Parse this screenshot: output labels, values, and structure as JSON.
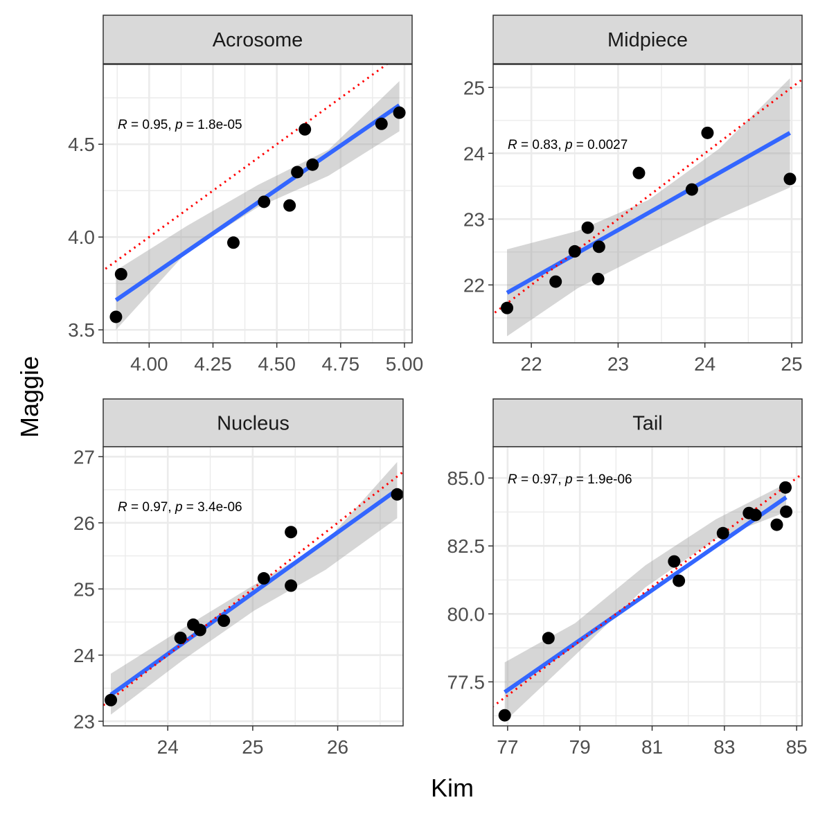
{
  "figure": {
    "xlabel": "Kim",
    "ylabel": "Maggie"
  },
  "colors": {
    "fit_line": "#3366FF",
    "ci_band": "#999999",
    "identity_line": "#FF0000",
    "points": "#000000",
    "strip_fill": "#D9D9D9",
    "grid": "#EBEBEB"
  },
  "chart_data": [
    {
      "type": "scatter",
      "facet": "Acrosome",
      "stat_label": {
        "r": "0.95",
        "p": "1.8e-05"
      },
      "xlim": [
        3.82,
        5.03
      ],
      "ylim": [
        3.43,
        4.93
      ],
      "xticks": [
        4.0,
        4.25,
        4.5,
        4.75,
        5.0
      ],
      "xtick_labels": [
        "4.00",
        "4.25",
        "4.50",
        "4.75",
        "5.00"
      ],
      "yticks": [
        3.5,
        4.0,
        4.5
      ],
      "ytick_labels": [
        "3.5",
        "4.0",
        "4.5"
      ],
      "points": [
        [
          3.87,
          3.57
        ],
        [
          3.89,
          3.8
        ],
        [
          4.33,
          3.97
        ],
        [
          4.45,
          4.19
        ],
        [
          4.55,
          4.17
        ],
        [
          4.58,
          4.35
        ],
        [
          4.61,
          4.58
        ],
        [
          4.64,
          4.39
        ],
        [
          4.91,
          4.61
        ],
        [
          4.98,
          4.67
        ]
      ],
      "fit": {
        "x": [
          3.87,
          4.98
        ],
        "y": [
          3.66,
          4.71
        ]
      },
      "ci_upper": [
        3.82,
        4.06,
        4.28,
        4.47,
        4.84
      ],
      "ci_lower": [
        3.5,
        3.92,
        4.16,
        4.33,
        4.57
      ]
    },
    {
      "type": "scatter",
      "facet": "Midpiece",
      "stat_label": {
        "r": "0.83",
        "p": "0.0027"
      },
      "xlim": [
        21.56,
        25.12
      ],
      "ylim": [
        21.12,
        25.35
      ],
      "xticks": [
        22,
        23,
        24,
        25
      ],
      "xtick_labels": [
        "22",
        "23",
        "24",
        "25"
      ],
      "yticks": [
        22,
        23,
        24,
        25
      ],
      "ytick_labels": [
        "22",
        "23",
        "24",
        "25"
      ],
      "points": [
        [
          21.72,
          21.65
        ],
        [
          22.28,
          22.05
        ],
        [
          22.5,
          22.51
        ],
        [
          22.65,
          22.87
        ],
        [
          22.78,
          22.58
        ],
        [
          22.77,
          22.09
        ],
        [
          23.24,
          23.7
        ],
        [
          23.85,
          23.45
        ],
        [
          24.03,
          24.31
        ],
        [
          24.98,
          23.61
        ]
      ],
      "fit": {
        "x": [
          21.72,
          24.98
        ],
        "y": [
          21.88,
          24.31
        ]
      },
      "ci_upper": [
        22.54,
        22.82,
        23.29,
        24.07,
        25.14
      ],
      "ci_lower": [
        21.22,
        21.95,
        22.5,
        23.01,
        23.48
      ]
    },
    {
      "type": "scatter",
      "facet": "Nucleus",
      "stat_label": {
        "r": "0.97",
        "p": "3.4e-06"
      },
      "xlim": [
        23.24,
        26.77
      ],
      "ylim": [
        22.93,
        27.15
      ],
      "xticks": [
        24,
        25,
        26
      ],
      "xtick_labels": [
        "24",
        "25",
        "26"
      ],
      "yticks": [
        23,
        24,
        25,
        26,
        27
      ],
      "ytick_labels": [
        "23",
        "24",
        "25",
        "26",
        "27"
      ],
      "points": [
        [
          23.33,
          23.32
        ],
        [
          24.15,
          24.26
        ],
        [
          24.3,
          24.46
        ],
        [
          24.38,
          24.38
        ],
        [
          24.66,
          24.52
        ],
        [
          25.13,
          25.16
        ],
        [
          25.45,
          25.86
        ],
        [
          25.45,
          25.05
        ],
        [
          26.7,
          26.43
        ]
      ],
      "fit": {
        "x": [
          23.33,
          26.7
        ],
        "y": [
          23.4,
          26.5
        ]
      },
      "ci_upper": [
        23.72,
        24.4,
        25.06,
        25.71,
        26.92
      ],
      "ci_lower": [
        23.1,
        23.92,
        24.67,
        25.29,
        26.07
      ]
    },
    {
      "type": "scatter",
      "facet": "Tail",
      "stat_label": {
        "r": "0.97",
        "p": "1.9e-06"
      },
      "xlim": [
        76.6,
        85.15
      ],
      "ylim": [
        75.88,
        86.15
      ],
      "xticks": [
        77,
        79,
        81,
        83,
        85
      ],
      "xtick_labels": [
        "77",
        "79",
        "81",
        "83",
        "85"
      ],
      "yticks": [
        77.5,
        80.0,
        82.5,
        85.0
      ],
      "ytick_labels": [
        "77.5",
        "80.0",
        "82.5",
        "85.0"
      ],
      "points": [
        [
          76.92,
          76.27
        ],
        [
          78.13,
          79.11
        ],
        [
          81.61,
          81.93
        ],
        [
          81.74,
          81.22
        ],
        [
          82.96,
          82.97
        ],
        [
          83.68,
          83.71
        ],
        [
          83.86,
          83.64
        ],
        [
          84.45,
          83.28
        ],
        [
          84.69,
          84.65
        ],
        [
          84.71,
          83.76
        ]
      ],
      "fit": {
        "x": [
          76.92,
          84.71
        ],
        "y": [
          77.12,
          84.29
        ]
      },
      "ci_upper": [
        78.22,
        79.66,
        81.79,
        83.48,
        84.8
      ],
      "ci_lower": [
        76.04,
        78.48,
        80.98,
        82.76,
        83.75
      ]
    }
  ]
}
